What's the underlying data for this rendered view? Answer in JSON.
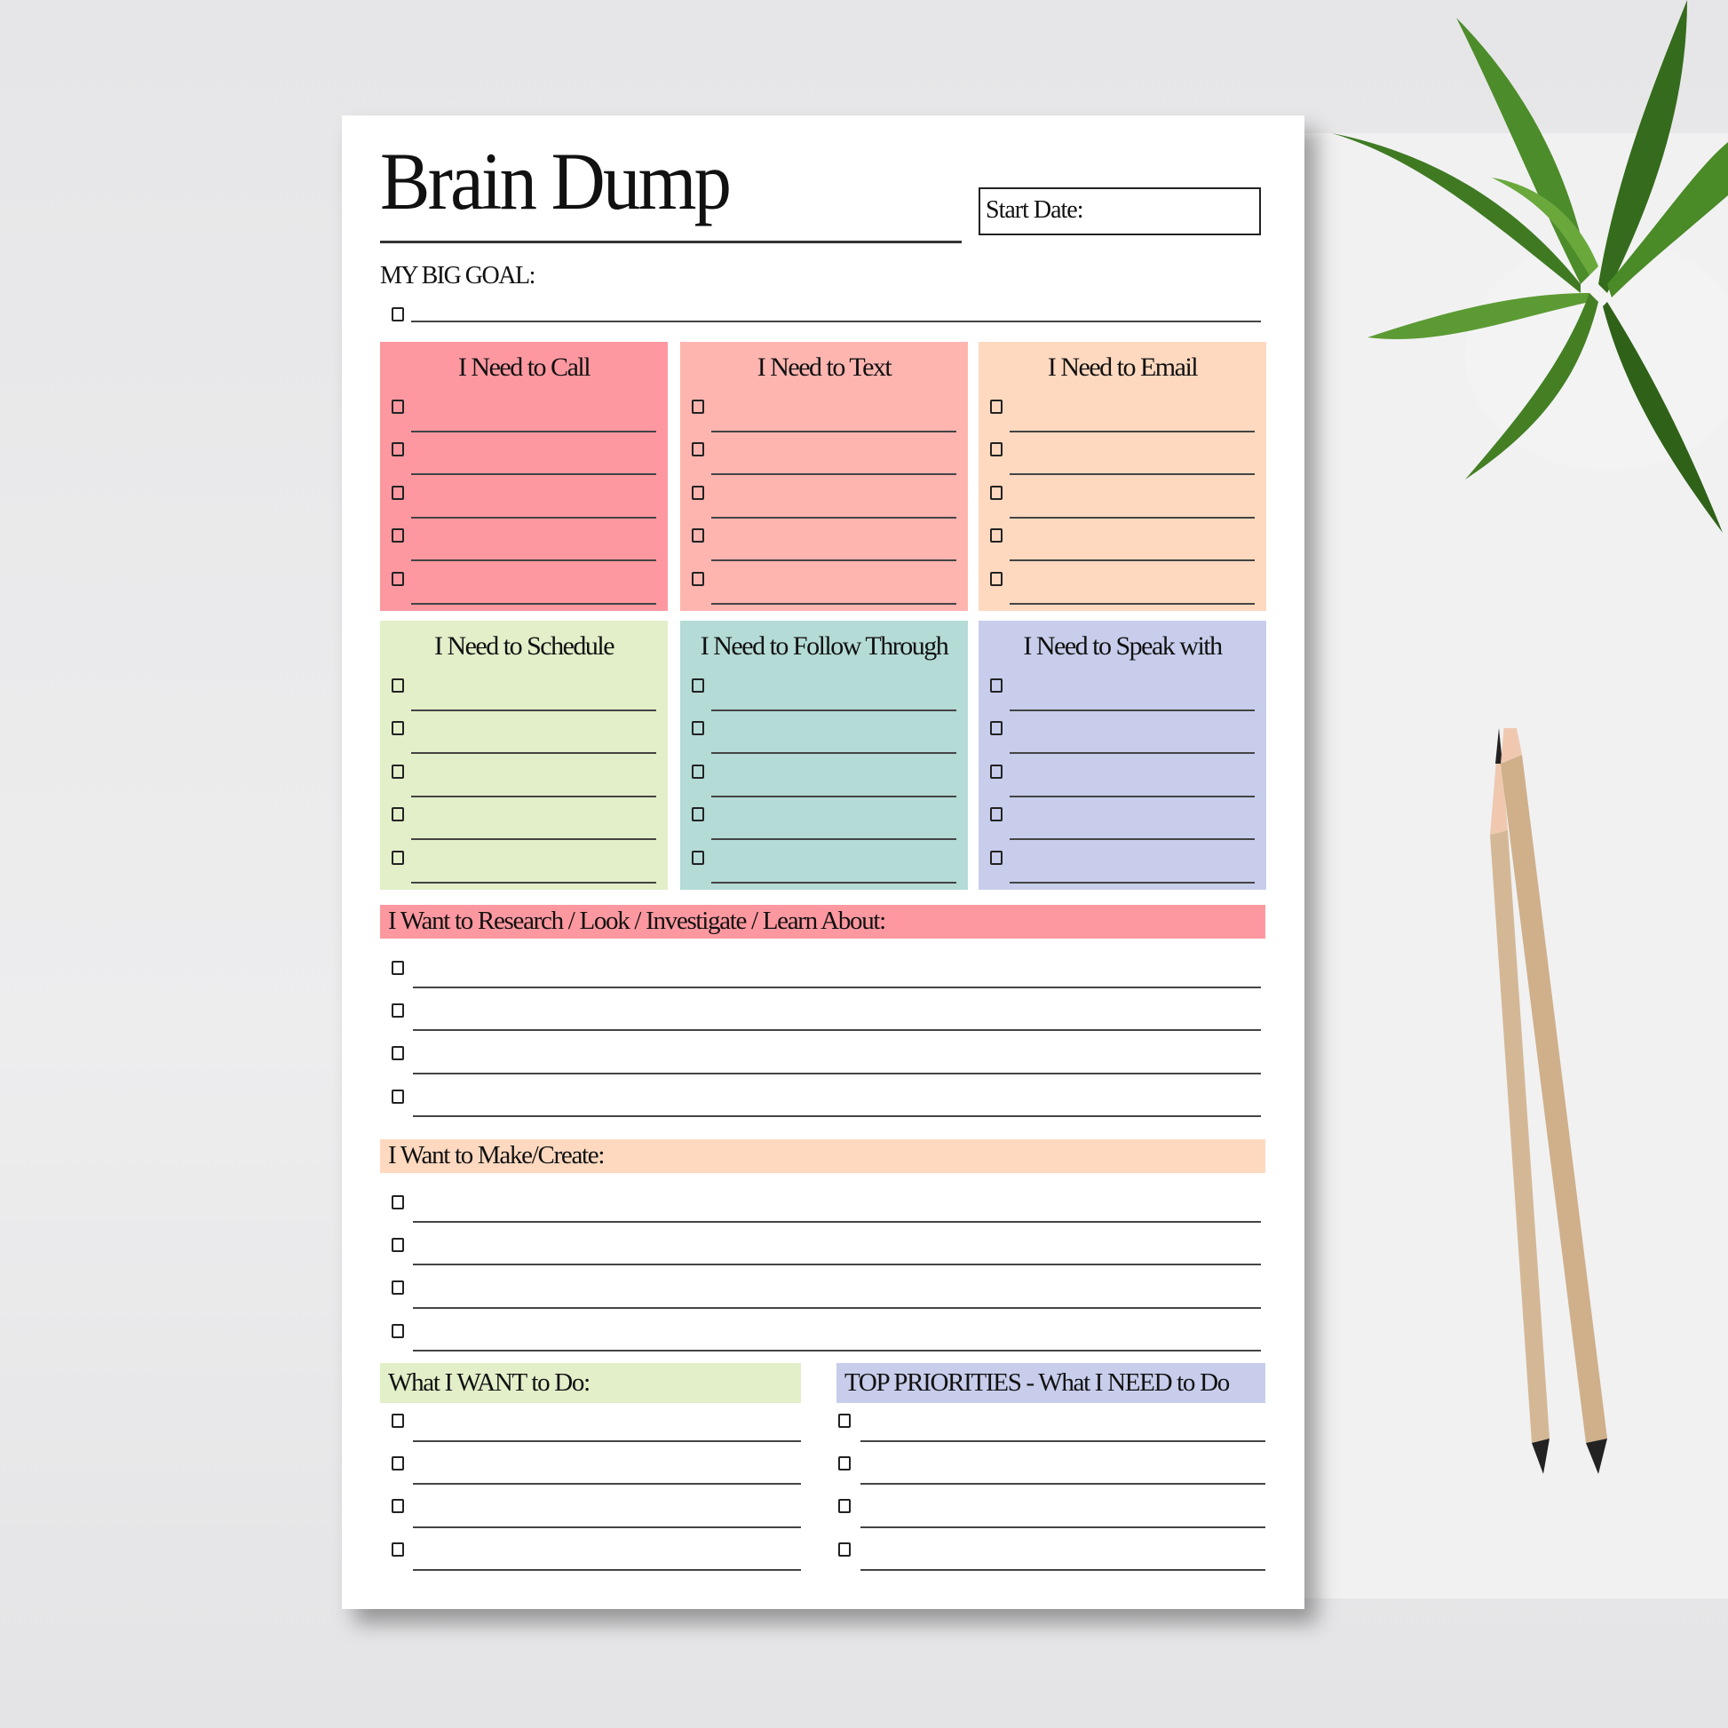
{
  "title": "Brain Dump",
  "start_date_label": "Start Date:",
  "big_goal_label": "MY BIG GOAL:",
  "boxes": [
    {
      "label": "I Need to Call",
      "color": "#fe98a0"
    },
    {
      "label": "I Need to Text",
      "color": "#feb5b0"
    },
    {
      "label": "I Need to Email",
      "color": "#fed9bf"
    },
    {
      "label": "I Need to Schedule",
      "color": "#e2efc9"
    },
    {
      "label": "I Need to Follow Through",
      "color": "#b4dbd6"
    },
    {
      "label": "I Need to Speak with",
      "color": "#c7cdeb"
    }
  ],
  "research": {
    "label": "I Want to Research / Look / Investigate / Learn About:",
    "color": "#fe98a0"
  },
  "make": {
    "label": "I Want to Make/Create:",
    "color": "#fed9bf"
  },
  "want": {
    "label": "What I WANT to Do:",
    "color": "#e2efc9"
  },
  "priorities": {
    "label": "TOP PRIORITIES - What I NEED to Do",
    "color": "#c7cdeb"
  }
}
